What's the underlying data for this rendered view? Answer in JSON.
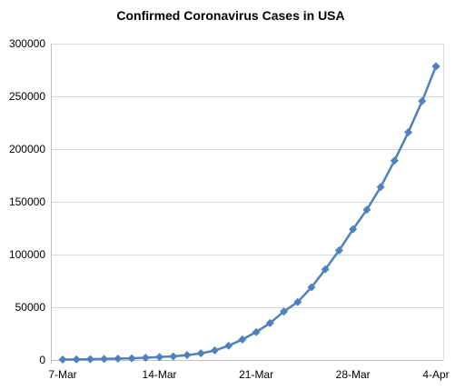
{
  "chart_data": {
    "type": "line",
    "title": "Confirmed Coronavirus Cases in USA",
    "xlabel": "",
    "ylabel": "",
    "ylim": [
      0,
      300000
    ],
    "y_ticks": [
      0,
      50000,
      100000,
      150000,
      200000,
      250000,
      300000
    ],
    "y_tick_labels": [
      "0",
      "50000",
      "100000",
      "150000",
      "200000",
      "250000",
      "300000"
    ],
    "x_ticks": [
      "7-Mar",
      "14-Mar",
      "21-Mar",
      "28-Mar",
      "4-Apr"
    ],
    "grid": true,
    "legend": "none",
    "series": [
      {
        "color": "#4f81bd",
        "marker": "diamond",
        "x": [
          "7-Mar",
          "8-Mar",
          "9-Mar",
          "10-Mar",
          "11-Mar",
          "12-Mar",
          "13-Mar",
          "14-Mar",
          "15-Mar",
          "16-Mar",
          "17-Mar",
          "18-Mar",
          "19-Mar",
          "20-Mar",
          "21-Mar",
          "22-Mar",
          "23-Mar",
          "24-Mar",
          "25-Mar",
          "26-Mar",
          "27-Mar",
          "28-Mar",
          "29-Mar",
          "30-Mar",
          "31-Mar",
          "1-Apr",
          "2-Apr",
          "3-Apr",
          "4-Apr"
        ],
        "values": [
          400,
          550,
          750,
          1000,
          1300,
          1650,
          2150,
          2800,
          3500,
          4600,
          6400,
          9000,
          13500,
          19500,
          26500,
          35000,
          46000,
          55000,
          69000,
          86000,
          104000,
          124000,
          142500,
          164000,
          189000,
          216000,
          245500,
          278500,
          278500
        ]
      }
    ]
  }
}
